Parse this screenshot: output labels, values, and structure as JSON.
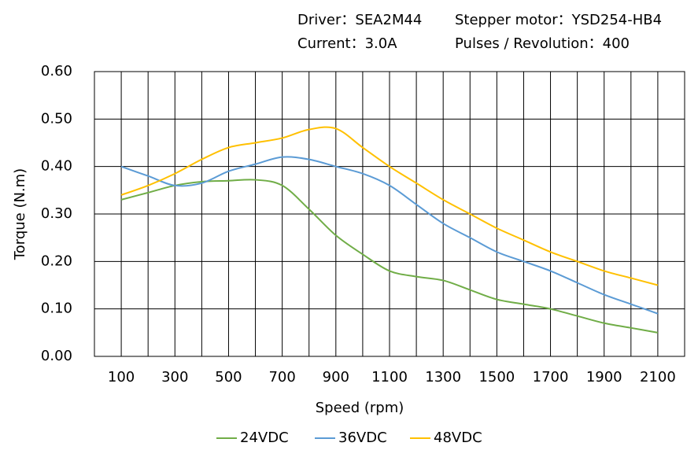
{
  "chart_data": {
    "type": "line",
    "annotations": [
      "Driver：SEA2M44",
      "Stepper motor：YSD254-HB4",
      "Current：3.0A",
      "Pulses / Revolution：400"
    ],
    "x_label": "Speed  (rpm)",
    "y_label": "Torque (N.m)",
    "x": [
      100,
      200,
      300,
      400,
      500,
      600,
      700,
      800,
      900,
      1000,
      1100,
      1200,
      1300,
      1400,
      1500,
      1600,
      1700,
      1800,
      1900,
      2000,
      2100
    ],
    "series": [
      {
        "name": "24VDC",
        "color": "#70ad47",
        "values": [
          0.33,
          0.345,
          0.36,
          0.368,
          0.37,
          0.372,
          0.36,
          0.31,
          0.255,
          0.215,
          0.18,
          0.168,
          0.16,
          0.14,
          0.12,
          0.11,
          0.1,
          0.085,
          0.07,
          0.06,
          0.05
        ]
      },
      {
        "name": "36VDC",
        "color": "#5b9bd5",
        "values": [
          0.4,
          0.38,
          0.36,
          0.365,
          0.39,
          0.405,
          0.42,
          0.415,
          0.4,
          0.385,
          0.36,
          0.32,
          0.28,
          0.25,
          0.22,
          0.2,
          0.18,
          0.155,
          0.13,
          0.11,
          0.09
        ]
      },
      {
        "name": "48VDC",
        "color": "#ffc000",
        "values": [
          0.34,
          0.36,
          0.385,
          0.415,
          0.44,
          0.45,
          0.46,
          0.478,
          0.48,
          0.44,
          0.4,
          0.365,
          0.33,
          0.3,
          0.27,
          0.245,
          0.22,
          0.2,
          0.18,
          0.165,
          0.15
        ]
      }
    ],
    "xlim": [
      0,
      2200
    ],
    "xticks": [
      100,
      300,
      500,
      700,
      900,
      1100,
      1300,
      1500,
      1700,
      1900,
      2100
    ],
    "x_minor_ticks": [
      200,
      400,
      600,
      800,
      1000,
      1200,
      1400,
      1600,
      1800,
      2000
    ],
    "ylim": [
      0,
      0.6
    ],
    "yticks": [
      {
        "value": 0,
        "label": "0.00"
      },
      {
        "value": 0.1,
        "label": "0.10"
      },
      {
        "value": 0.2,
        "label": "0.20"
      },
      {
        "value": 0.3,
        "label": "0.30"
      },
      {
        "value": 0.4,
        "label": "0.40"
      },
      {
        "value": 0.5,
        "label": "0.50"
      },
      {
        "value": 0.6,
        "label": "0.60"
      }
    ],
    "grid": true,
    "legend": "bottom"
  }
}
